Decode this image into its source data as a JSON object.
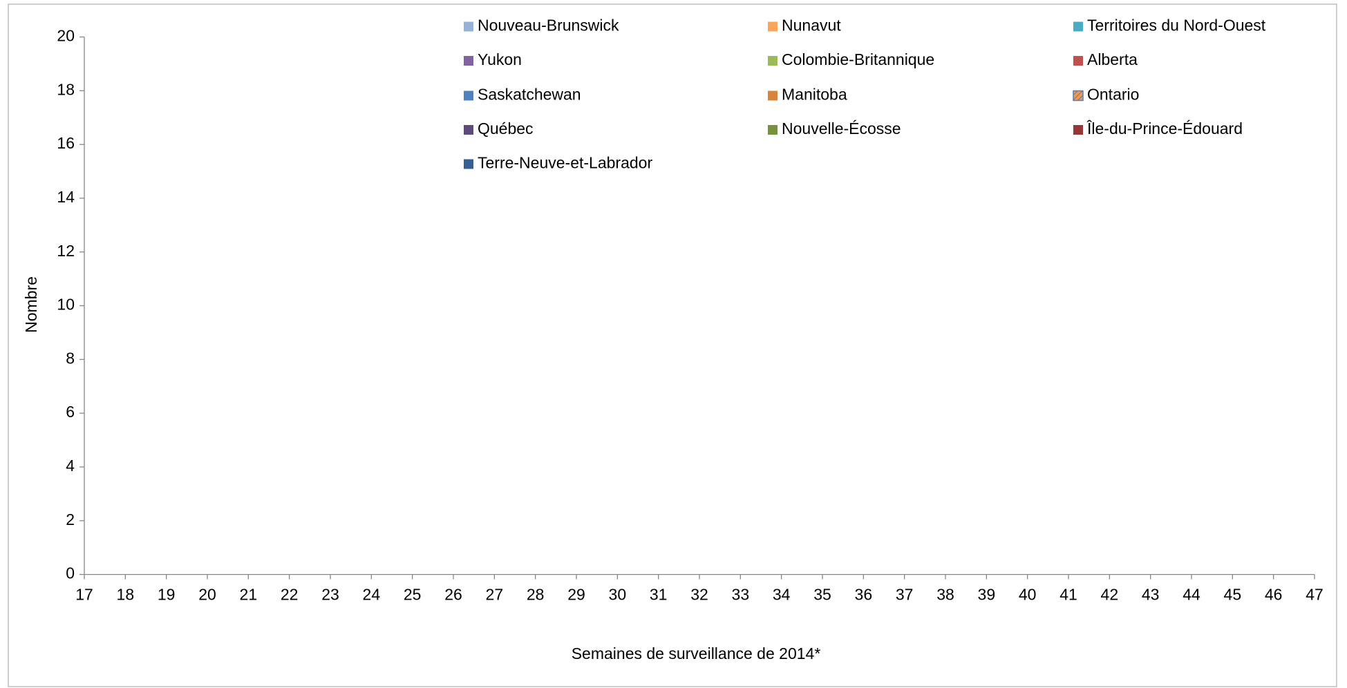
{
  "chart_data": {
    "type": "bar",
    "stacked": true,
    "xlabel": "Semaines de surveillance de 2014*",
    "ylabel": "Nombre",
    "xlim": [
      17,
      47
    ],
    "xticks": [
      17,
      18,
      19,
      20,
      21,
      22,
      23,
      24,
      25,
      26,
      27,
      28,
      29,
      30,
      31,
      32,
      33,
      34,
      35,
      36,
      37,
      38,
      39,
      40,
      41,
      42,
      43,
      44,
      45,
      46,
      47
    ],
    "ylim": [
      0,
      20
    ],
    "yticks": [
      0,
      2,
      4,
      6,
      8,
      10,
      12,
      14,
      16,
      18,
      20
    ],
    "grid": false,
    "legend": "top",
    "series": [
      {
        "name": "Nouveau-Brunswick",
        "color": "#95b3d7"
      },
      {
        "name": "Nunavut",
        "color": "#f9a65a"
      },
      {
        "name": "Territoires du Nord-Ouest",
        "color": "#4bacc6"
      },
      {
        "name": "Yukon",
        "color": "#8064a2"
      },
      {
        "name": "Colombie-Britannique",
        "color": "#9bbb59"
      },
      {
        "name": "Alberta",
        "color": "#c0504d"
      },
      {
        "name": "Saskatchewan",
        "color": "#4f81bd"
      },
      {
        "name": "Manitoba",
        "color": "#d9843a"
      },
      {
        "name": "Ontario",
        "color": "#f79646",
        "edgecolor": "#4f81bd",
        "hatch": "/"
      },
      {
        "name": "Québec",
        "color": "#604a7b"
      },
      {
        "name": "Nouvelle-Écosse",
        "color": "#76923c"
      },
      {
        "name": "Île-du-Prince-Édouard",
        "color": "#953735"
      },
      {
        "name": "Terre-Neuve-et-Labrador",
        "color": "#376092"
      }
    ]
  }
}
